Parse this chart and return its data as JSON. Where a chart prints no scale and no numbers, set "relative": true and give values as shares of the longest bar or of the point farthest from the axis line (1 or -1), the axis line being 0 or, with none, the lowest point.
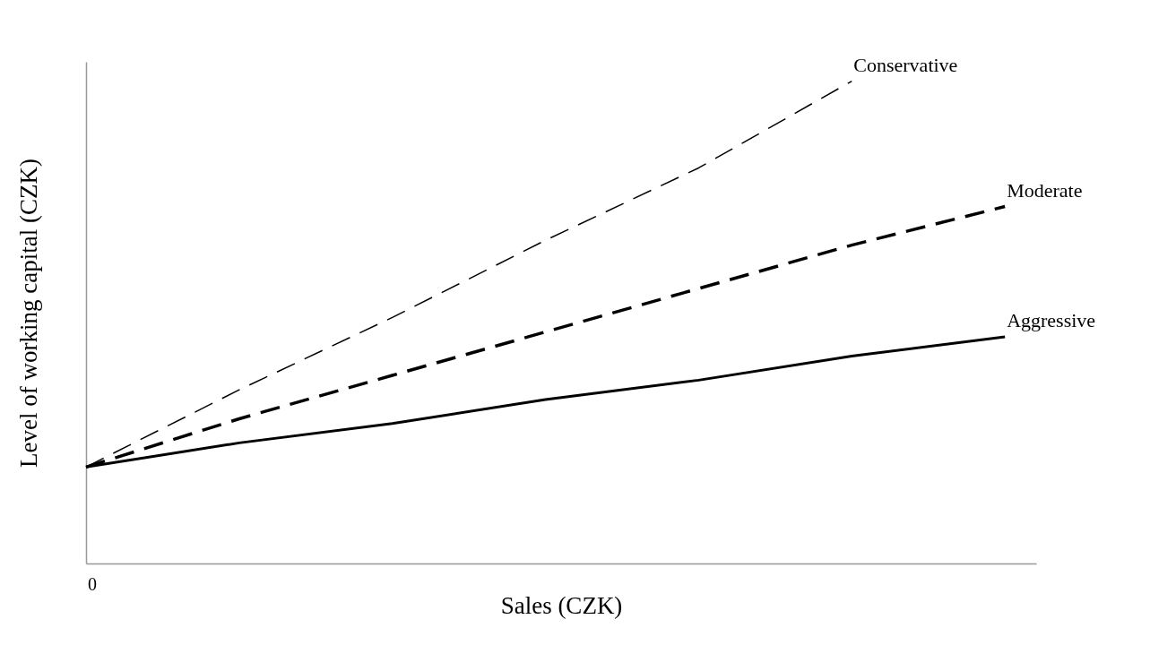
{
  "chart_data": {
    "type": "line",
    "relative": true,
    "xlabel": "Sales (CZK)",
    "ylabel": "Level of working capital (CZK)",
    "annotations": [
      "0"
    ],
    "tick_labels": false,
    "grid": false,
    "categories": [
      null,
      null,
      null,
      null,
      null,
      null,
      null
    ],
    "series": [
      {
        "name": "Conservative",
        "color": "#000000",
        "line_style": "dashed",
        "values": [
          0.2,
          0.36,
          0.51,
          0.67,
          0.82,
          1,
          null
        ]
      },
      {
        "name": "Moderate",
        "color": "#000000",
        "line_style": "dashed",
        "values": [
          0.2,
          0.3,
          0.39,
          0.48,
          0.57,
          0.66,
          0.74
        ]
      },
      {
        "name": "Aggressive",
        "color": "#000000",
        "line_style": "solid",
        "values": [
          0.2,
          0.25,
          0.29,
          0.34,
          0.38,
          0.43,
          0.47
        ]
      }
    ]
  }
}
